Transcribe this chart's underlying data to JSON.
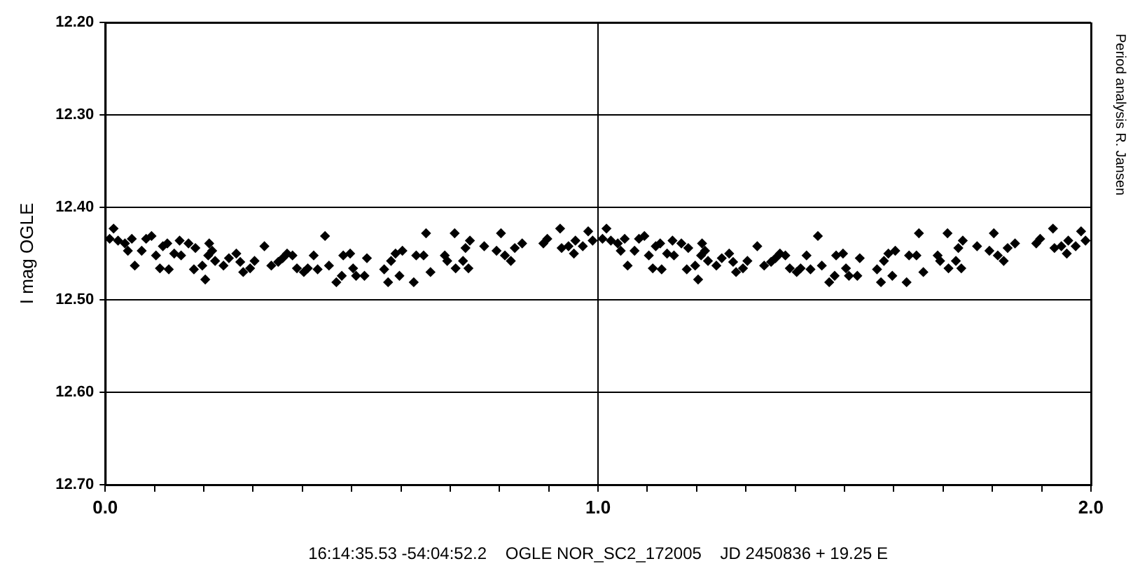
{
  "chart_data": {
    "type": "scatter",
    "xlabel": "16:14:35.53 -54:04:52.2    OGLE NOR_SC2_172005    JD 2450836 + 19.25 E",
    "ylabel": "I mag OGLE",
    "annotations": [
      "Period analysis R. Jansen"
    ],
    "color": "#000000",
    "marker": "diamond",
    "grid": true,
    "xlim": [
      0,
      2
    ],
    "xticks": [
      {
        "value": 0,
        "label": "0.0"
      },
      {
        "value": 0.1,
        "label": null
      },
      {
        "value": 0.2,
        "label": null
      },
      {
        "value": 0.3,
        "label": null
      },
      {
        "value": 0.4,
        "label": null
      },
      {
        "value": 0.5,
        "label": null
      },
      {
        "value": 0.6,
        "label": null
      },
      {
        "value": 0.7,
        "label": null
      },
      {
        "value": 0.8,
        "label": null
      },
      {
        "value": 0.9,
        "label": null
      },
      {
        "value": 1,
        "label": "1.0"
      },
      {
        "value": 1.1,
        "label": null
      },
      {
        "value": 1.2,
        "label": null
      },
      {
        "value": 1.3,
        "label": null
      },
      {
        "value": 1.4,
        "label": null
      },
      {
        "value": 1.5,
        "label": null
      },
      {
        "value": 1.6,
        "label": null
      },
      {
        "value": 1.7,
        "label": null
      },
      {
        "value": 1.8,
        "label": null
      },
      {
        "value": 1.9,
        "label": null
      },
      {
        "value": 2,
        "label": "2.0"
      }
    ],
    "ylim": [
      12.7,
      12.2
    ],
    "yticks": [
      {
        "value": 12.2,
        "label": "12.20"
      },
      {
        "value": 12.3,
        "label": "12.30"
      },
      {
        "value": 12.4,
        "label": "12.40"
      },
      {
        "value": 12.5,
        "label": "12.50"
      },
      {
        "value": 12.6,
        "label": "12.60"
      },
      {
        "value": 12.7,
        "label": "12.70"
      }
    ],
    "x": [
      0.009,
      0.017,
      0.026,
      0.04,
      0.046,
      0.054,
      0.06,
      0.074,
      0.083,
      0.094,
      0.103,
      0.111,
      0.117,
      0.126,
      0.129,
      0.14,
      0.151,
      0.154,
      0.169,
      0.18,
      0.183,
      0.197,
      0.203,
      0.209,
      0.211,
      0.217,
      0.223,
      0.24,
      0.251,
      0.266,
      0.274,
      0.28,
      0.294,
      0.303,
      0.323,
      0.337,
      0.351,
      0.36,
      0.369,
      0.38,
      0.389,
      0.403,
      0.411,
      0.423,
      0.431,
      0.446,
      0.454,
      0.469,
      0.48,
      0.483,
      0.497,
      0.503,
      0.509,
      0.526,
      0.531,
      0.566,
      0.574,
      0.58,
      0.589,
      0.597,
      0.603,
      0.626,
      0.631,
      0.646,
      0.651,
      0.66,
      0.689,
      0.694,
      0.709,
      0.711,
      0.726,
      0.731,
      0.737,
      0.74,
      0.769,
      0.794,
      0.803,
      0.811,
      0.823,
      0.831,
      0.846,
      0.889,
      0.897,
      0.923,
      0.926,
      0.94,
      0.951,
      0.954,
      0.969,
      0.98,
      0.989,
      1.009,
      1.017,
      1.026,
      1.04,
      1.046,
      1.054,
      1.06,
      1.074,
      1.083,
      1.094,
      1.103,
      1.111,
      1.117,
      1.126,
      1.129,
      1.14,
      1.151,
      1.154,
      1.169,
      1.18,
      1.183,
      1.197,
      1.203,
      1.209,
      1.211,
      1.217,
      1.223,
      1.24,
      1.251,
      1.266,
      1.274,
      1.28,
      1.294,
      1.303,
      1.323,
      1.337,
      1.351,
      1.36,
      1.369,
      1.38,
      1.389,
      1.403,
      1.411,
      1.423,
      1.431,
      1.446,
      1.454,
      1.469,
      1.48,
      1.483,
      1.497,
      1.503,
      1.509,
      1.526,
      1.531,
      1.566,
      1.574,
      1.58,
      1.589,
      1.597,
      1.603,
      1.626,
      1.631,
      1.646,
      1.651,
      1.66,
      1.689,
      1.694,
      1.709,
      1.711,
      1.726,
      1.731,
      1.737,
      1.74,
      1.769,
      1.794,
      1.803,
      1.811,
      1.823,
      1.831,
      1.846,
      1.889,
      1.897,
      1.923,
      1.926,
      1.94,
      1.951,
      1.954,
      1.969,
      1.98,
      1.989
    ],
    "values": [
      12.434,
      12.423,
      12.436,
      12.439,
      12.447,
      12.434,
      12.463,
      12.447,
      12.434,
      12.431,
      12.452,
      12.466,
      12.442,
      12.439,
      12.467,
      12.45,
      12.436,
      12.452,
      12.439,
      12.467,
      12.444,
      12.463,
      12.478,
      12.452,
      12.439,
      12.447,
      12.458,
      12.463,
      12.455,
      12.45,
      12.459,
      12.47,
      12.466,
      12.458,
      12.442,
      12.463,
      12.459,
      12.455,
      12.45,
      12.452,
      12.466,
      12.47,
      12.466,
      12.452,
      12.467,
      12.431,
      12.463,
      12.481,
      12.474,
      12.452,
      12.45,
      12.466,
      12.474,
      12.474,
      12.455,
      12.467,
      12.481,
      12.458,
      12.45,
      12.474,
      12.447,
      12.481,
      12.452,
      12.452,
      12.428,
      12.47,
      12.452,
      12.458,
      12.428,
      12.466,
      12.458,
      12.444,
      12.466,
      12.436,
      12.442,
      12.447,
      12.428,
      12.452,
      12.458,
      12.444,
      12.439,
      12.439,
      12.434,
      12.423,
      12.444,
      12.442,
      12.45,
      12.436,
      12.442,
      12.426,
      12.436,
      12.434,
      12.423,
      12.436,
      12.439,
      12.447,
      12.434,
      12.463,
      12.447,
      12.434,
      12.431,
      12.452,
      12.466,
      12.442,
      12.439,
      12.467,
      12.45,
      12.436,
      12.452,
      12.439,
      12.467,
      12.444,
      12.463,
      12.478,
      12.452,
      12.439,
      12.447,
      12.458,
      12.463,
      12.455,
      12.45,
      12.459,
      12.47,
      12.466,
      12.458,
      12.442,
      12.463,
      12.459,
      12.455,
      12.45,
      12.452,
      12.466,
      12.47,
      12.466,
      12.452,
      12.467,
      12.431,
      12.463,
      12.481,
      12.474,
      12.452,
      12.45,
      12.466,
      12.474,
      12.474,
      12.455,
      12.467,
      12.481,
      12.458,
      12.45,
      12.474,
      12.447,
      12.481,
      12.452,
      12.452,
      12.428,
      12.47,
      12.452,
      12.458,
      12.428,
      12.466,
      12.458,
      12.444,
      12.466,
      12.436,
      12.442,
      12.447,
      12.428,
      12.452,
      12.458,
      12.444,
      12.439,
      12.439,
      12.434,
      12.423,
      12.444,
      12.442,
      12.45,
      12.436,
      12.442,
      12.426,
      12.436
    ]
  }
}
